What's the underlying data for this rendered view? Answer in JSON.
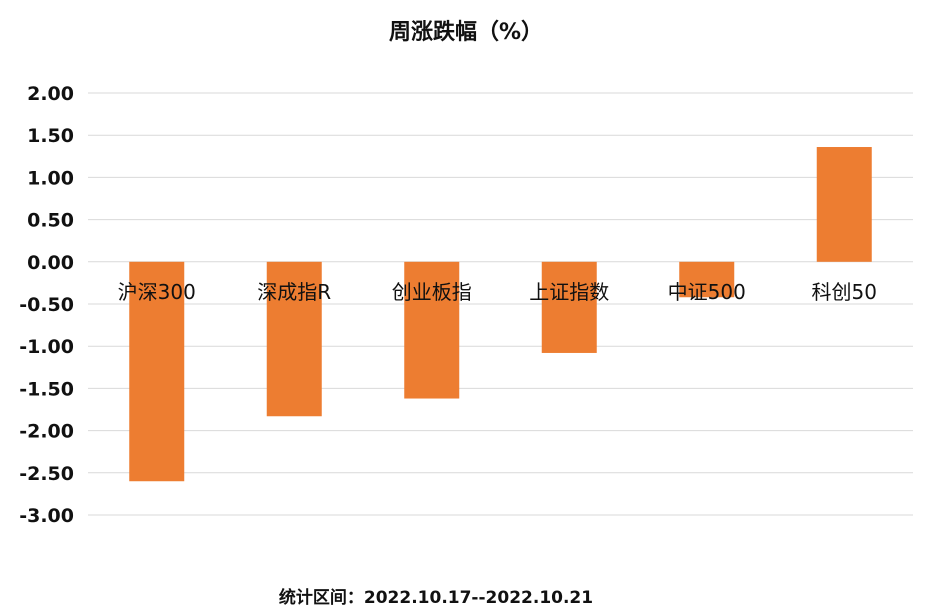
{
  "chart_data": {
    "type": "bar",
    "title": "周涨跌幅（%）",
    "xlabel": "",
    "ylabel": "",
    "categories": [
      "沪深300",
      "深成指R",
      "创业板指",
      "上证指数",
      "中证500",
      "科创50"
    ],
    "values": [
      -2.6,
      -1.83,
      -1.62,
      -1.08,
      -0.42,
      1.36
    ],
    "ylim": [
      -3.0,
      2.0
    ],
    "yticks": [
      "2.00",
      "1.50",
      "1.00",
      "0.50",
      "0.00",
      "-0.50",
      "-1.00",
      "-1.50",
      "-2.00",
      "-2.50",
      "-3.00"
    ],
    "grid": true,
    "bar_color": "#ED7D31",
    "grid_color": "#D9D9D9"
  },
  "footer": {
    "text": "统计区间：2022.10.17--2022.10.21"
  }
}
